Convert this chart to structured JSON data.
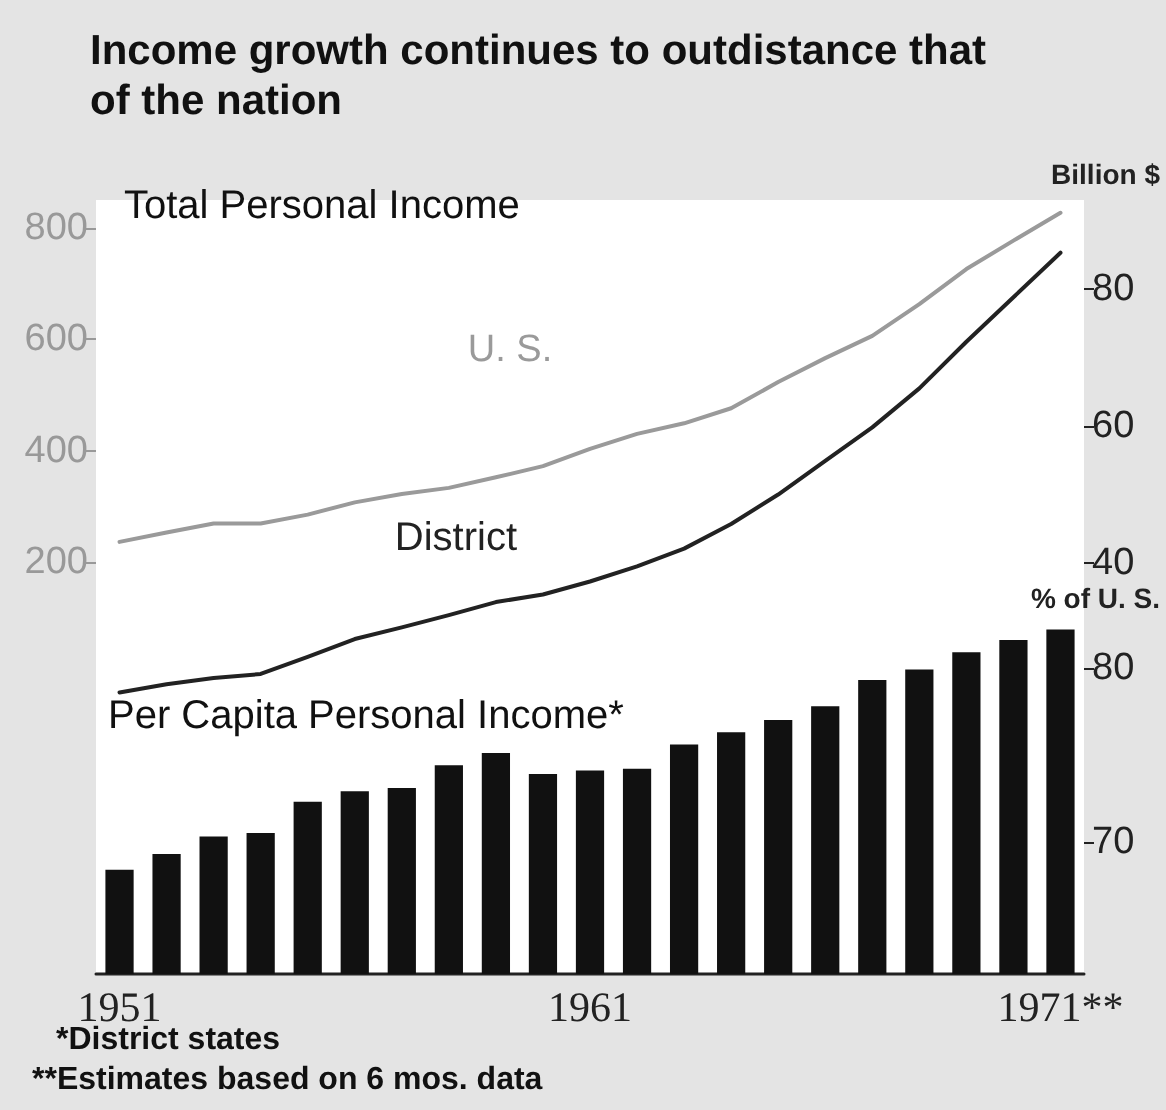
{
  "chart_data": {
    "type": "bar",
    "title": "Income growth continues to outdistance that of the nation",
    "categories": [
      "1951",
      null,
      null,
      null,
      null,
      null,
      null,
      null,
      null,
      null,
      "1961",
      null,
      null,
      null,
      null,
      null,
      null,
      null,
      null,
      null,
      "1971**"
    ],
    "series": [
      {
        "name": "U. S.",
        "type": "line",
        "axis": "y",
        "color": "#9a9a9a",
        "values": [
          236,
          253,
          269,
          269,
          285,
          307,
          322,
          333,
          352,
          372,
          403,
          430,
          449,
          476,
          523,
          566,
          606,
          663,
          726,
          777,
          827
        ]
      },
      {
        "name": "District",
        "type": "line",
        "axis": "y2",
        "color": "#222222",
        "values": [
          21.1,
          22.3,
          23.2,
          23.8,
          26.3,
          28.9,
          30.6,
          32.4,
          34.3,
          35.4,
          37.3,
          39.5,
          42.1,
          45.7,
          50.0,
          54.9,
          59.8,
          65.5,
          72.3,
          78.8,
          85.3
        ]
      },
      {
        "axis": "y3",
        "color": "#111111",
        "values": [
          68.4,
          69.3,
          70.3,
          70.5,
          72.3,
          72.9,
          73.1,
          74.4,
          75.1,
          73.9,
          74.1,
          74.2,
          75.6,
          76.3,
          77.0,
          77.8,
          79.3,
          79.9,
          80.9,
          81.6,
          82.2
        ]
      }
    ],
    "ylim": [
      -540,
      850
    ],
    "yticks": [
      200,
      400,
      600,
      800
    ],
    "y2lim": [
      -20,
      93
    ],
    "y2ticks": [
      40,
      60,
      80
    ],
    "y2label": "Billion $",
    "y3lim": [
      62.4,
      106.9
    ],
    "y3ticks": [
      70,
      80
    ],
    "y3label": "% of U. S.",
    "annotations": [
      "Total Personal Income",
      "Per Capita Personal Income*",
      "*District states",
      "**Estimates based on 6 mos. data"
    ],
    "grid": false,
    "legend": false,
    "marker": "none",
    "line_style": "solid"
  }
}
